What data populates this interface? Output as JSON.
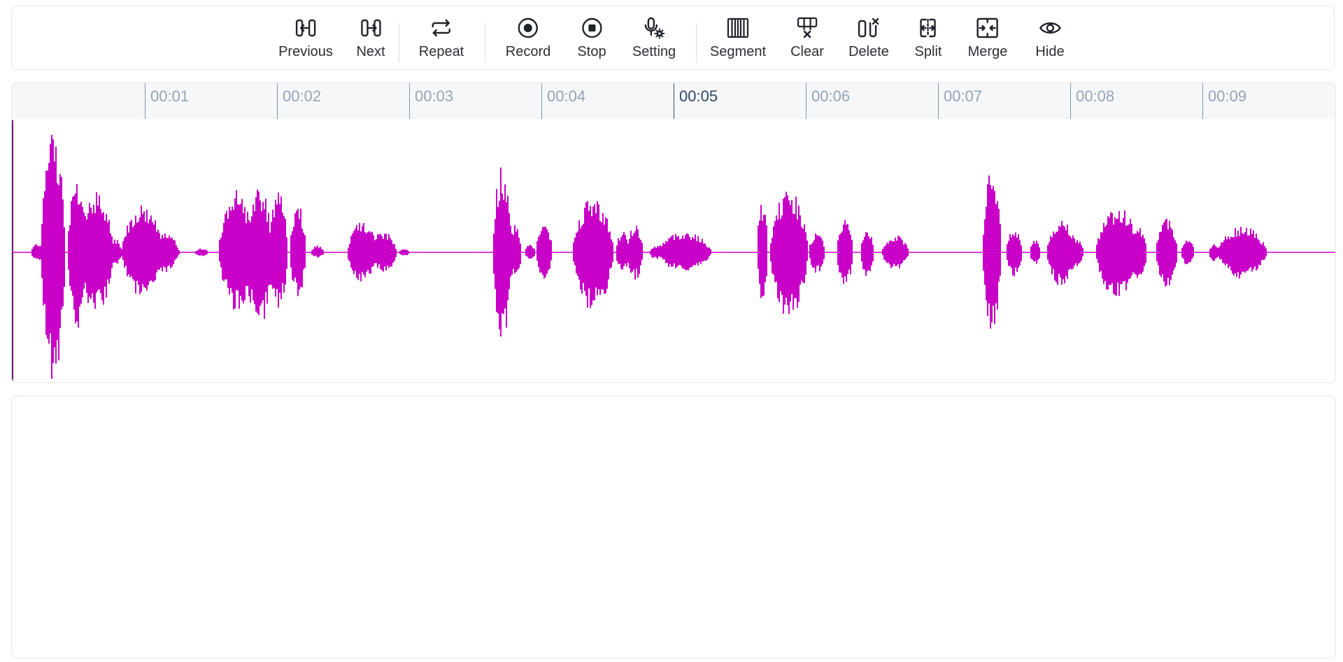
{
  "toolbar": {
    "items": [
      {
        "id": "previous",
        "label": "Previous",
        "icon": "previous-icon"
      },
      {
        "id": "next",
        "label": "Next",
        "icon": "next-icon"
      },
      {
        "id": "repeat",
        "label": "Repeat",
        "icon": "repeat-icon"
      },
      {
        "id": "record",
        "label": "Record",
        "icon": "record-icon"
      },
      {
        "id": "stop",
        "label": "Stop",
        "icon": "stop-icon"
      },
      {
        "id": "setting",
        "label": "Setting",
        "icon": "mic-settings-icon"
      },
      {
        "id": "segment",
        "label": "Segment",
        "icon": "segment-icon"
      },
      {
        "id": "clear",
        "label": "Clear",
        "icon": "clear-segments-icon"
      },
      {
        "id": "delete",
        "label": "Delete",
        "icon": "delete-segment-icon"
      },
      {
        "id": "split",
        "label": "Split",
        "icon": "split-icon"
      },
      {
        "id": "merge",
        "label": "Merge",
        "icon": "merge-icon"
      },
      {
        "id": "hide",
        "label": "Hide",
        "icon": "eye-icon"
      }
    ]
  },
  "timeline": {
    "ticks": [
      "00:01",
      "00:02",
      "00:03",
      "00:04",
      "00:05",
      "00:06",
      "00:07",
      "00:08",
      "00:09"
    ],
    "active_tick": "00:05"
  },
  "waveform": {
    "color": "#c800c8",
    "duration_seconds": 10,
    "cursor_seconds": 0
  },
  "colors": {
    "accent": "#c800c8",
    "ruler_bg": "#f5f7f9",
    "border": "#e3e6ea"
  }
}
